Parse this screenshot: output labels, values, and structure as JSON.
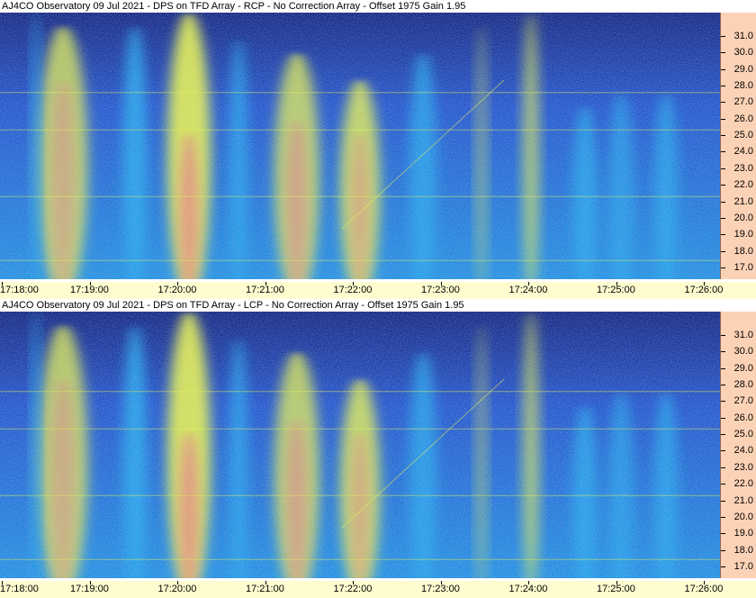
{
  "window": {
    "panels": [
      {
        "title": "AJ4CO Observatory 09 Jul 2021 - DPS on TFD Array  - RCP  -  No Correction Array  -  Offset 1975  Gain 1.95",
        "polarization": "RCP"
      },
      {
        "title": "AJ4CO Observatory 09 Jul 2021 - DPS on TFD Array  - LCP  -  No Correction Array  -  Offset 1975  Gain 1.95",
        "polarization": "LCP"
      }
    ]
  },
  "colors": {
    "background_low": "#0a1a7a",
    "mid": "#1aa0e8",
    "high": "#e8f040",
    "peak": "#f05a8a",
    "freq_axis_bg": "#fcd2b6",
    "time_axis_bg": "#fffdd0"
  },
  "chart_data": [
    {
      "type": "heatmap",
      "title": "AJ4CO Observatory 09 Jul 2021 - DPS on TFD Array  - RCP  -  No Correction Array  -  Offset 1975  Gain 1.95",
      "x_ticks": [
        "17:18:00",
        "17:19:00",
        "17:20:00",
        "17:21:00",
        "17:22:00",
        "17:23:00",
        "17:24:00",
        "17:25:00",
        "17:26:00"
      ],
      "y_ticks": [
        "17.0",
        "18.0",
        "19.0",
        "20.0",
        "21.0",
        "22.0",
        "23.0",
        "24.0",
        "25.0",
        "26.0",
        "27.0",
        "28.0",
        "29.0",
        "30.0",
        "31.0"
      ],
      "xlim": [
        "17:18:00",
        "17:26:00"
      ],
      "ylim": [
        16.3,
        32.4
      ],
      "colormap": "jet",
      "grid": false
    },
    {
      "type": "heatmap",
      "title": "AJ4CO Observatory 09 Jul 2021 - DPS on TFD Array  - LCP  -  No Correction Array  -  Offset 1975  Gain 1.95",
      "x_ticks": [
        "17:18:00",
        "17:19:00",
        "17:20:00",
        "17:21:00",
        "17:22:00",
        "17:23:00",
        "17:24:00",
        "17:25:00",
        "17:26:00"
      ],
      "y_ticks": [
        "17.0",
        "18.0",
        "19.0",
        "20.0",
        "21.0",
        "22.0",
        "23.0",
        "24.0",
        "25.0",
        "26.0",
        "27.0",
        "28.0",
        "29.0",
        "30.0",
        "31.0"
      ],
      "xlim": [
        "17:18:00",
        "17:26:00"
      ],
      "ylim": [
        16.3,
        32.4
      ],
      "colormap": "jet",
      "grid": false
    }
  ]
}
